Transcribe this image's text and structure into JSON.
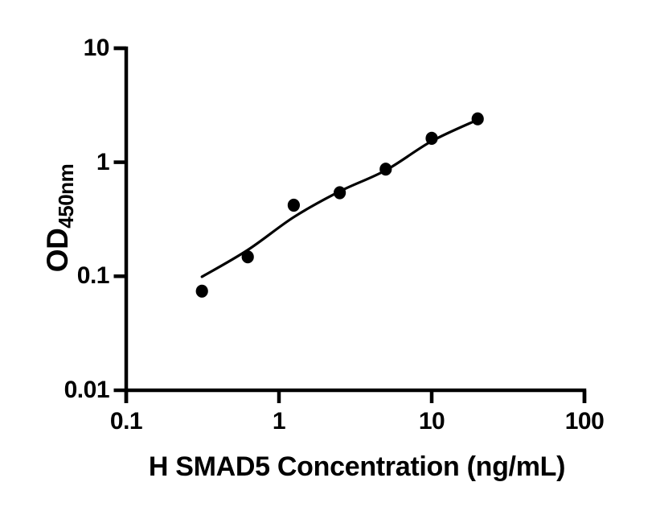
{
  "chart_data": {
    "type": "scatter",
    "title": "",
    "xlabel": "H SMAD5 Concentration (ng/mL)",
    "ylabel": "OD450nm",
    "ylabel_main": "OD",
    "ylabel_sub": "450nm",
    "x_scale": "log",
    "y_scale": "log",
    "xlim": [
      0.1,
      100
    ],
    "ylim": [
      0.01,
      10
    ],
    "grid": false,
    "legend": "none",
    "x_ticks": {
      "values": [
        0.1,
        1,
        10,
        100
      ],
      "labels": [
        "0.1",
        "1",
        "10",
        "100"
      ]
    },
    "y_ticks": {
      "values": [
        10,
        1,
        0.1,
        0.01
      ],
      "labels": [
        "10",
        "1",
        "0.1",
        "0.01"
      ]
    },
    "series": [
      {
        "name": "standard-curve-points",
        "marker": "filled-circle",
        "color": "#000000",
        "x": [
          0.313,
          0.625,
          1.25,
          2.5,
          5,
          10,
          20
        ],
        "y": [
          0.074,
          0.148,
          0.42,
          0.54,
          0.87,
          1.62,
          2.4
        ]
      }
    ],
    "fit_curve": {
      "name": "fit-line",
      "color": "#000000",
      "x": [
        0.313,
        0.625,
        1.25,
        2.5,
        5,
        10,
        20
      ],
      "y": [
        0.099,
        0.17,
        0.33,
        0.555,
        0.85,
        1.53,
        2.36
      ]
    },
    "colors": {
      "axis": "#000000",
      "marker": "#000000",
      "line": "#000000",
      "text": "#000000",
      "background": "#ffffff"
    }
  }
}
